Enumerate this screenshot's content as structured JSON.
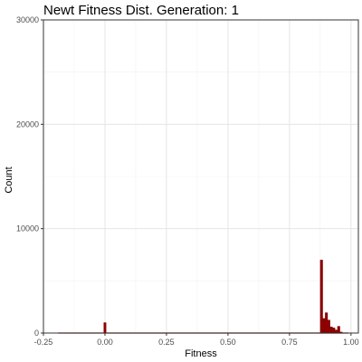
{
  "chart_data": {
    "type": "bar",
    "title": "Newt Fitness Dist. Generation: 1",
    "xlabel": "Fitness",
    "ylabel": "Count",
    "xlim": [
      -0.25,
      1.03
    ],
    "ylim": [
      0,
      30000
    ],
    "xticks": [
      -0.25,
      0,
      0.25,
      0.5,
      0.75,
      1
    ],
    "xtick_labels": [
      "-0.25",
      "0.00",
      "0.25",
      "0.50",
      "0.75",
      "1.00"
    ],
    "yticks": [
      0,
      10000,
      20000,
      30000
    ],
    "ytick_labels": [
      "0",
      "10000",
      "20000",
      "30000"
    ],
    "grid": true,
    "bar_color": "#8b0000",
    "bin_width": 0.01,
    "baseline_range": [
      -0.19,
      0.99
    ],
    "bins": [
      {
        "x": 0.0,
        "count": 1000
      },
      {
        "x": 0.88,
        "count": 7000
      },
      {
        "x": 0.89,
        "count": 1400
      },
      {
        "x": 0.9,
        "count": 1950
      },
      {
        "x": 0.91,
        "count": 1250
      },
      {
        "x": 0.92,
        "count": 600
      },
      {
        "x": 0.93,
        "count": 500
      },
      {
        "x": 0.94,
        "count": 300
      },
      {
        "x": 0.95,
        "count": 650
      },
      {
        "x": 0.96,
        "count": 100
      }
    ]
  }
}
